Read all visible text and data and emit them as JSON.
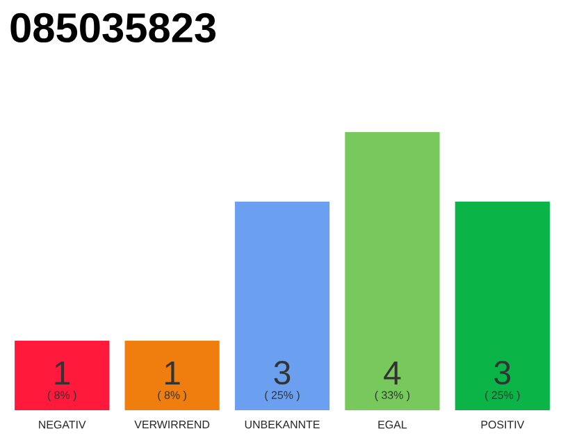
{
  "chart_data": {
    "type": "bar",
    "title": "085035823",
    "categories": [
      "NEGATIV",
      "VERWIRREND",
      "UNBEKANNTE",
      "EGAL",
      "POSITIV"
    ],
    "values": [
      1,
      1,
      3,
      4,
      3
    ],
    "colors": [
      "#ff1a3c",
      "#f07e0f",
      "#6aa0ef",
      "#77c95c",
      "#0ab446"
    ],
    "data_labels": true,
    "annotations": [
      "( 8% )",
      "( 8% )",
      "( 25% )",
      "( 33% )",
      "( 25% )"
    ]
  }
}
